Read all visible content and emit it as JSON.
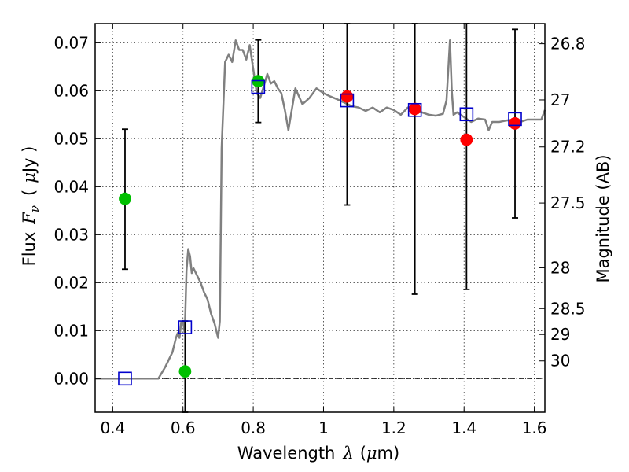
{
  "chart_data": {
    "type": "scatter",
    "title": "",
    "xlabel": "Wavelength",
    "xlabel_symbol": "λ",
    "xlabel_unit_open": "(",
    "xlabel_unit_mu": "μ",
    "xlabel_unit_close": "m)",
    "ylabel": "Flux",
    "ylabel_symbol": "F",
    "ylabel_subscript": "ν",
    "ylabel_unit_open": "(",
    "ylabel_unit_mu": "μ",
    "ylabel_unit_close": "Jy )",
    "y2label": "Magnitude (AB)",
    "xlim": [
      0.35,
      1.63
    ],
    "ylim": [
      -0.007,
      0.074
    ],
    "grid": true,
    "grid_style": "dotted",
    "x_ticks": [
      {
        "value": 0.4,
        "label": "0.4"
      },
      {
        "value": 0.6,
        "label": "0.6"
      },
      {
        "value": 0.8,
        "label": "0.8"
      },
      {
        "value": 1.0,
        "label": "1"
      },
      {
        "value": 1.2,
        "label": "1.2"
      },
      {
        "value": 1.4,
        "label": "1.4"
      },
      {
        "value": 1.6,
        "label": "1.6"
      }
    ],
    "y_ticks": [
      {
        "value": 0.0,
        "label": "0.00"
      },
      {
        "value": 0.01,
        "label": "0.01"
      },
      {
        "value": 0.02,
        "label": "0.02"
      },
      {
        "value": 0.03,
        "label": "0.03"
      },
      {
        "value": 0.04,
        "label": "0.04"
      },
      {
        "value": 0.05,
        "label": "0.05"
      },
      {
        "value": 0.06,
        "label": "0.06"
      },
      {
        "value": 0.07,
        "label": "0.07"
      }
    ],
    "y2_ticks": [
      {
        "label": "26.8",
        "flux": 0.0698
      },
      {
        "label": "27",
        "flux": 0.0581
      },
      {
        "label": "27.2",
        "flux": 0.0483
      },
      {
        "label": "27.5",
        "flux": 0.0366
      },
      {
        "label": "28",
        "flux": 0.0231
      },
      {
        "label": "28.5",
        "flux": 0.0146
      },
      {
        "label": "29",
        "flux": 0.0092
      },
      {
        "label": "30",
        "flux": 0.0037
      }
    ],
    "model_spectrum": {
      "color": "#808080",
      "x": [
        0.35,
        0.53,
        0.55,
        0.57,
        0.58,
        0.585,
        0.59,
        0.595,
        0.6,
        0.605,
        0.61,
        0.615,
        0.62,
        0.625,
        0.63,
        0.64,
        0.65,
        0.66,
        0.67,
        0.68,
        0.69,
        0.7,
        0.705,
        0.71,
        0.72,
        0.73,
        0.74,
        0.75,
        0.76,
        0.77,
        0.78,
        0.79,
        0.8,
        0.81,
        0.82,
        0.83,
        0.84,
        0.85,
        0.86,
        0.87,
        0.88,
        0.89,
        0.9,
        0.92,
        0.94,
        0.96,
        0.98,
        1.0,
        1.02,
        1.04,
        1.06,
        1.08,
        1.1,
        1.12,
        1.14,
        1.16,
        1.18,
        1.2,
        1.22,
        1.24,
        1.26,
        1.28,
        1.3,
        1.32,
        1.34,
        1.35,
        1.36,
        1.365,
        1.37,
        1.38,
        1.4,
        1.42,
        1.44,
        1.46,
        1.47,
        1.48,
        1.5,
        1.52,
        1.54,
        1.56,
        1.58,
        1.6,
        1.62,
        1.63
      ],
      "y": [
        0.0,
        0.0,
        0.0025,
        0.0055,
        0.0085,
        0.0095,
        0.0085,
        0.0118,
        0.012,
        0.0095,
        0.0225,
        0.027,
        0.0255,
        0.022,
        0.023,
        0.0215,
        0.02,
        0.018,
        0.0165,
        0.0135,
        0.0115,
        0.0085,
        0.012,
        0.048,
        0.066,
        0.0675,
        0.066,
        0.0705,
        0.0685,
        0.0685,
        0.0665,
        0.0695,
        0.0645,
        0.0595,
        0.0585,
        0.061,
        0.0635,
        0.0615,
        0.062,
        0.0605,
        0.0595,
        0.056,
        0.0518,
        0.0605,
        0.0572,
        0.0585,
        0.0605,
        0.0595,
        0.0588,
        0.0582,
        0.0575,
        0.0568,
        0.0565,
        0.0558,
        0.0565,
        0.0555,
        0.0565,
        0.056,
        0.055,
        0.0565,
        0.0555,
        0.0555,
        0.055,
        0.0548,
        0.0552,
        0.058,
        0.0705,
        0.06,
        0.055,
        0.0555,
        0.0545,
        0.0535,
        0.0542,
        0.054,
        0.0518,
        0.0535,
        0.0535,
        0.0538,
        0.054,
        0.0535,
        0.054,
        0.054,
        0.054,
        0.056
      ]
    },
    "series": [
      {
        "marker": "circle",
        "color": "#00c000",
        "points": [
          {
            "x": 0.435,
            "y": 0.0375,
            "yerr_low": 0.0228,
            "yerr_high": 0.052
          },
          {
            "x": 0.606,
            "y": 0.0015,
            "yerr_low": -0.007,
            "yerr_high": 0.012
          },
          {
            "x": 0.814,
            "y": 0.062,
            "yerr_low": 0.0534,
            "yerr_high": 0.0706
          }
        ]
      },
      {
        "marker": "circle",
        "color": "#ff0000",
        "points": [
          {
            "x": 1.067,
            "y": 0.0588,
            "yerr_low": 0.0362,
            "yerr_high": 0.074
          },
          {
            "x": 1.26,
            "y": 0.0562,
            "yerr_low": 0.0176,
            "yerr_high": 0.074
          },
          {
            "x": 1.407,
            "y": 0.0498,
            "yerr_low": 0.0186,
            "yerr_high": 0.074
          },
          {
            "x": 1.545,
            "y": 0.0532,
            "yerr_low": 0.0335,
            "yerr_high": 0.0728
          }
        ]
      },
      {
        "marker": "open-square",
        "color": "#0000cc",
        "points": [
          {
            "x": 0.435,
            "y": 0.0
          },
          {
            "x": 0.606,
            "y": 0.0107
          },
          {
            "x": 0.814,
            "y": 0.0608
          },
          {
            "x": 1.067,
            "y": 0.058
          },
          {
            "x": 1.26,
            "y": 0.056
          },
          {
            "x": 1.407,
            "y": 0.0551
          },
          {
            "x": 1.545,
            "y": 0.0541
          }
        ]
      }
    ]
  }
}
